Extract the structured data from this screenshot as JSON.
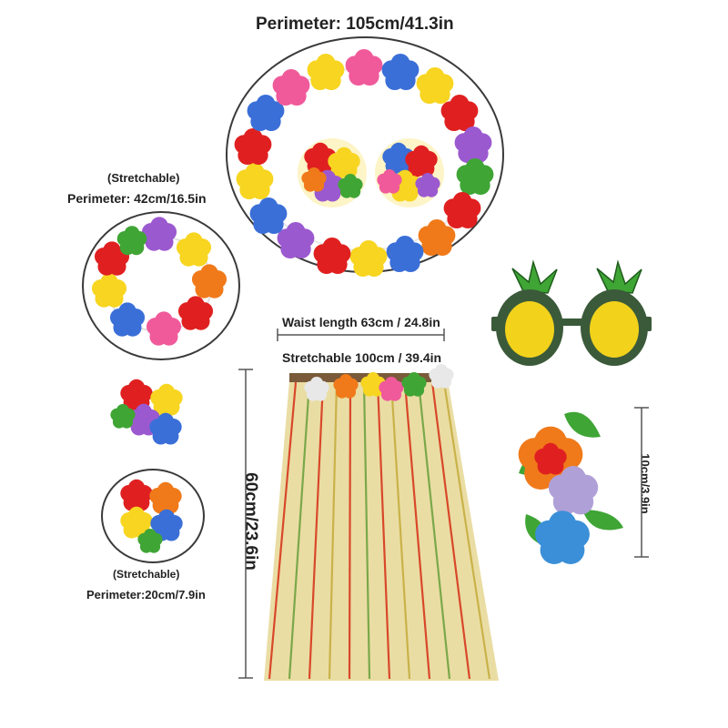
{
  "labels": {
    "big_lei_perimeter": "Perimeter: 105cm/41.3in",
    "headband_stretch": "(Stretchable)",
    "headband_perimeter": "Perimeter: 42cm/16.5in",
    "waist_length": "Waist length 63cm / 24.8in",
    "waist_stretch": "Stretchable 100cm / 39.4in",
    "skirt_length": "60cm/23.6in",
    "wrist_stretch": "(Stretchable)",
    "wrist_perimeter": "Perimeter:20cm/7.9in",
    "clip_size": "10cm/3.9in"
  },
  "colors": {
    "ring": "#3a3a3a",
    "dimension_line": "#555555",
    "flower_red": "#e02020",
    "flower_yellow": "#f7d520",
    "flower_purple": "#9b59d0",
    "flower_blue": "#3a6fd8",
    "flower_orange": "#f07a1a",
    "flower_pink": "#f05a9a",
    "leaf_green": "#3fa535",
    "lens_yellow": "#f2d21b",
    "grass_red": "#d8482a",
    "grass_yellow": "#d9c15a"
  },
  "icons": [
    "flower-lei",
    "flower-headband",
    "hula-skirt",
    "pineapple-sunglasses",
    "flower-wristband",
    "flower-hair-clip"
  ]
}
